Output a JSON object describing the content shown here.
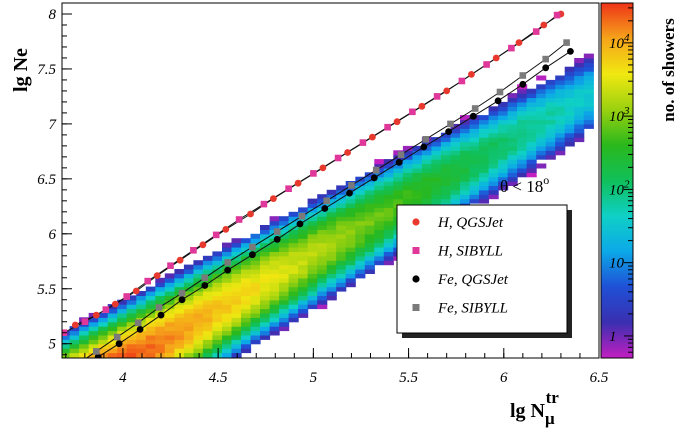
{
  "chart_data": {
    "type": "heatmap",
    "title": "",
    "xlabel": "lg N",
    "xlabel_sub": "μ",
    "xlabel_sup": "tr",
    "ylabel": "lg Ne",
    "xlim": [
      3.68,
      6.5
    ],
    "ylim": [
      4.87,
      8.1
    ],
    "x_ticks": [
      4,
      4.5,
      5,
      5.5,
      6,
      6.5
    ],
    "y_ticks": [
      5,
      5.5,
      6,
      6.5,
      7,
      7.5,
      8
    ],
    "x_tick_labels": [
      "4",
      "4.5",
      "5",
      "5.5",
      "6",
      "6.5"
    ],
    "y_tick_labels": [
      "5",
      "5.5",
      "6",
      "6.5",
      "7",
      "7.5",
      "8"
    ],
    "annotation": "θ < 18",
    "annotation_sup": "o",
    "colorbar": {
      "label": "no. of showers",
      "scale": "log",
      "range": [
        0.5,
        35000
      ],
      "ticks": [
        1,
        10,
        100,
        1000,
        10000
      ],
      "tick_bases": [
        "1",
        "10",
        "10",
        "10",
        "10"
      ],
      "tick_exps": [
        "",
        "",
        "2",
        "3",
        "4"
      ],
      "colors": [
        "#c31fc1",
        "#3a2fb0",
        "#1f50d6",
        "#0ca8e8",
        "#0fd0c6",
        "#10c05a",
        "#2ab81c",
        "#9ad10f",
        "#f0e811",
        "#f6a41a",
        "#ee3418"
      ]
    },
    "grid": false,
    "legend_placement": "lower-right",
    "series": [
      {
        "name": "H, QGSJet",
        "marker": "circle",
        "color": "#e8392f",
        "x": [
          3.75,
          3.86,
          3.96,
          4.07,
          4.18,
          4.3,
          4.42,
          4.54,
          4.67,
          4.79,
          4.92,
          5.05,
          5.18,
          5.31,
          5.44,
          5.57,
          5.7,
          5.83,
          5.96,
          6.08,
          6.21,
          6.3
        ],
        "y": [
          5.17,
          5.26,
          5.36,
          5.48,
          5.62,
          5.76,
          5.9,
          6.04,
          6.18,
          6.32,
          6.46,
          6.6,
          6.74,
          6.88,
          7.02,
          7.16,
          7.3,
          7.45,
          7.6,
          7.74,
          7.9,
          8.0
        ]
      },
      {
        "name": "H, SIBYLL",
        "marker": "square",
        "color": "#e0379a",
        "x": [
          3.69,
          3.8,
          3.91,
          4.02,
          4.13,
          4.25,
          4.37,
          4.49,
          4.61,
          4.74,
          4.87,
          5.0,
          5.13,
          5.26,
          5.39,
          5.52,
          5.65,
          5.78,
          5.91,
          6.04,
          6.17,
          6.28
        ],
        "y": [
          5.1,
          5.2,
          5.31,
          5.43,
          5.57,
          5.71,
          5.85,
          5.99,
          6.13,
          6.27,
          6.41,
          6.55,
          6.69,
          6.83,
          6.97,
          7.11,
          7.25,
          7.39,
          7.54,
          7.69,
          7.84,
          7.99
        ]
      },
      {
        "name": "Fe, QGSJet",
        "marker": "circle",
        "color": "#000000",
        "x": [
          3.87,
          3.98,
          4.09,
          4.2,
          4.31,
          4.43,
          4.55,
          4.68,
          4.81,
          4.93,
          5.06,
          5.19,
          5.32,
          5.45,
          5.58,
          5.71,
          5.84,
          5.97,
          6.1,
          6.22,
          6.35
        ],
        "y": [
          4.88,
          5.0,
          5.13,
          5.26,
          5.4,
          5.53,
          5.67,
          5.81,
          5.95,
          6.09,
          6.23,
          6.37,
          6.51,
          6.65,
          6.79,
          6.93,
          7.07,
          7.21,
          7.36,
          7.51,
          7.66
        ]
      },
      {
        "name": "Fe, SIBYLL",
        "marker": "square",
        "color": "#7a7a7a",
        "x": [
          3.75,
          3.86,
          3.97,
          4.08,
          4.19,
          4.31,
          4.43,
          4.55,
          4.68,
          4.81,
          4.94,
          5.07,
          5.2,
          5.33,
          5.46,
          5.59,
          5.72,
          5.85,
          5.98,
          6.1,
          6.22,
          6.33
        ],
        "y": [
          4.8,
          4.93,
          5.06,
          5.19,
          5.33,
          5.46,
          5.6,
          5.74,
          5.88,
          6.02,
          6.16,
          6.3,
          6.44,
          6.58,
          6.72,
          6.86,
          7.0,
          7.14,
          7.29,
          7.44,
          7.59,
          7.74
        ]
      }
    ]
  }
}
